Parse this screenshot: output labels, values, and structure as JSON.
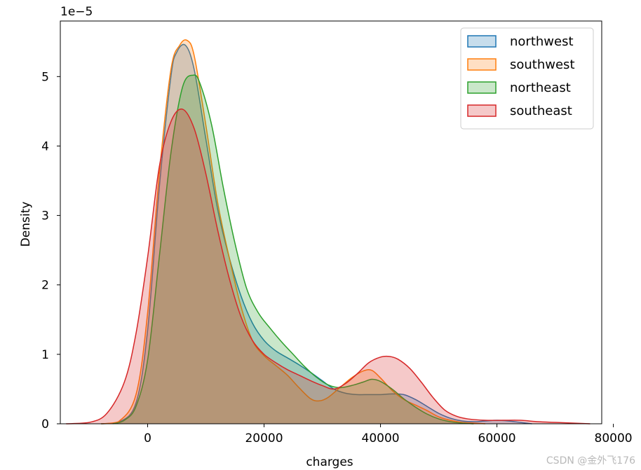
{
  "chart_data": {
    "type": "area",
    "xlabel": "charges",
    "ylabel": "Density",
    "y_scale_label": "1e−5",
    "xlim": [
      -15000,
      78000
    ],
    "ylim": [
      0,
      5.8
    ],
    "xticks": [
      0,
      20000,
      40000,
      60000,
      80000
    ],
    "xtick_labels": [
      "0",
      "20000",
      "40000",
      "60000",
      "80000"
    ],
    "yticks": [
      0,
      1,
      2,
      3,
      4,
      5
    ],
    "ytick_labels": [
      "0",
      "1",
      "2",
      "3",
      "4",
      "5"
    ],
    "legend_position": "top-right",
    "grid": false,
    "series": [
      {
        "name": "northwest",
        "color": "#1f77b4",
        "x": [
          -8000,
          -5000,
          -2000,
          0,
          2000,
          4000,
          5000,
          6500,
          8000,
          10000,
          12000,
          14000,
          16000,
          18000,
          20000,
          22000,
          24000,
          26000,
          28000,
          30000,
          32000,
          34000,
          36000,
          38000,
          40000,
          42000,
          44000,
          46000,
          48000,
          50000,
          52000,
          54000,
          56000,
          58000,
          60000,
          62000,
          64000,
          66000
        ],
        "y": [
          0,
          0.02,
          0.3,
          1.35,
          3.4,
          5.0,
          5.35,
          5.45,
          5.1,
          4.1,
          3.1,
          2.4,
          1.85,
          1.45,
          1.2,
          1.05,
          0.95,
          0.85,
          0.74,
          0.62,
          0.5,
          0.44,
          0.42,
          0.42,
          0.42,
          0.43,
          0.42,
          0.35,
          0.25,
          0.15,
          0.08,
          0.04,
          0.03,
          0.04,
          0.05,
          0.04,
          0.02,
          0
        ]
      },
      {
        "name": "southwest",
        "color": "#ff7f0e",
        "x": [
          -8000,
          -5000,
          -2000,
          0,
          2000,
          4000,
          5500,
          6800,
          8000,
          10000,
          12000,
          14000,
          16000,
          18000,
          20000,
          22000,
          24000,
          26000,
          28000,
          29500,
          31000,
          33000,
          35000,
          37000,
          38500,
          40000,
          42000,
          44000,
          46000,
          48000,
          50000,
          52000,
          54000,
          56000,
          58000
        ],
        "y": [
          0,
          0.03,
          0.42,
          1.6,
          3.6,
          5.1,
          5.45,
          5.52,
          5.3,
          4.3,
          3.2,
          2.4,
          1.7,
          1.2,
          0.98,
          0.84,
          0.7,
          0.52,
          0.36,
          0.33,
          0.38,
          0.52,
          0.66,
          0.76,
          0.77,
          0.66,
          0.48,
          0.35,
          0.27,
          0.19,
          0.1,
          0.05,
          0.02,
          0.01,
          0
        ]
      },
      {
        "name": "northeast",
        "color": "#2ca02c",
        "x": [
          -6000,
          -4000,
          -2000,
          0,
          2000,
          4000,
          6000,
          7800,
          9000,
          11000,
          13000,
          15000,
          17000,
          19000,
          21000,
          23000,
          25000,
          27000,
          29000,
          31000,
          33000,
          35000,
          37000,
          38500,
          40000,
          42000,
          44000,
          46000,
          48000,
          50000,
          52000,
          54000,
          56000
        ],
        "y": [
          0,
          0.05,
          0.25,
          0.92,
          2.4,
          3.9,
          4.85,
          5.02,
          4.9,
          4.3,
          3.4,
          2.6,
          1.95,
          1.6,
          1.38,
          1.18,
          1.0,
          0.82,
          0.67,
          0.56,
          0.52,
          0.55,
          0.6,
          0.64,
          0.61,
          0.5,
          0.36,
          0.24,
          0.14,
          0.07,
          0.03,
          0.01,
          0
        ]
      },
      {
        "name": "southeast",
        "color": "#d62728",
        "x": [
          -14000,
          -10000,
          -7000,
          -4000,
          -2000,
          0,
          2000,
          4000,
          6000,
          8000,
          10000,
          12000,
          14000,
          16000,
          18000,
          20000,
          22000,
          24000,
          26000,
          28000,
          30000,
          32000,
          34000,
          36000,
          38000,
          40000,
          41500,
          43000,
          45000,
          47000,
          49000,
          51000,
          53000,
          55000,
          58000,
          61000,
          64000,
          67000,
          70000,
          73000,
          76000
        ],
        "y": [
          0,
          0.02,
          0.15,
          0.6,
          1.3,
          2.4,
          3.7,
          4.35,
          4.53,
          4.25,
          3.6,
          2.8,
          2.1,
          1.55,
          1.2,
          1.0,
          0.88,
          0.78,
          0.7,
          0.62,
          0.55,
          0.5,
          0.58,
          0.72,
          0.88,
          0.96,
          0.97,
          0.93,
          0.8,
          0.6,
          0.38,
          0.2,
          0.11,
          0.07,
          0.05,
          0.05,
          0.05,
          0.03,
          0.02,
          0.01,
          0
        ]
      }
    ]
  },
  "watermark": "CSDN @金外飞176"
}
